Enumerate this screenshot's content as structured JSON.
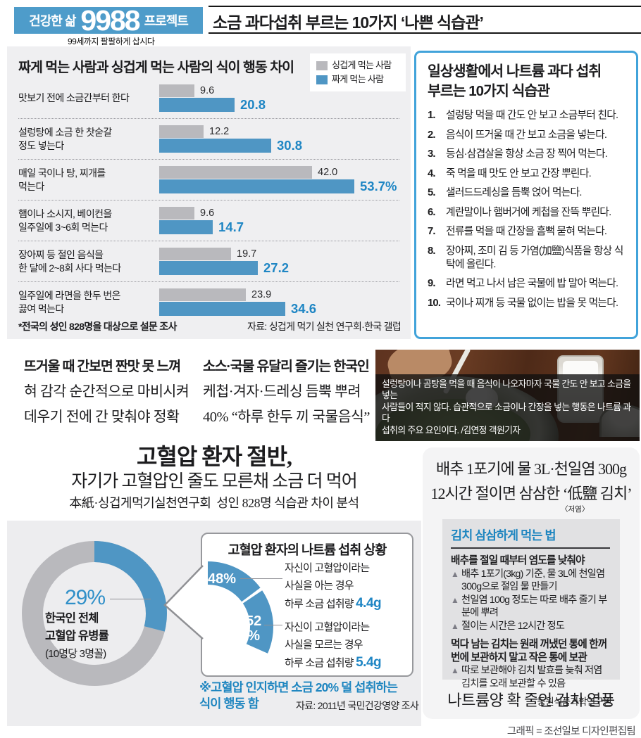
{
  "colors": {
    "badge_blue": "#4e9cca",
    "bar_blue": "#4f96c4",
    "bar_gray": "#b9b9bd",
    "value_blue": "#1f86c4",
    "box_border_blue": "#41a3da",
    "panel_gray": "#efeff1",
    "donut_gray": "#b9b9bd"
  },
  "header": {
    "badge_line1": "건강한 삶",
    "badge_number": "9988",
    "badge_line2": "프로젝트",
    "badge_sub": "99세까지 팔팔하게 삽시다",
    "title": "소금 과다섭취 부르는 10가지 ‘나쁜 식습관’"
  },
  "chart": {
    "title": "짜게 먹는 사람과 싱겁게 먹는 사람의 식이 행동 차이",
    "footnote": "*전국의 성인 828명을 대상으로 설문 조사",
    "source": "자료: 싱겁게 먹기 실천 연구회·한국 갤럽"
  },
  "chart_data": [
    {
      "type": "bar",
      "orientation": "horizontal",
      "title": "짜게 먹는 사람과 싱겁게 먹는 사람의 식이 행동 차이",
      "categories": [
        "맛보기 전에 소금간부터 한다",
        "설렁탕에 소금 한 찻숟갈\n정도 넣는다",
        "매일 국이나 탕, 찌개를\n먹는다",
        "햄이나 소시지, 베이컨을\n일주일에 3~6회 먹는다",
        "장아찌 등 절인 음식을\n한 달에 2~8회 사다 먹는다",
        "일주일에 라면을 한두 번은\n끓여 먹는다"
      ],
      "series": [
        {
          "name": "싱겁게 먹는 사람",
          "color": "#b9b9bd",
          "values": [
            9.6,
            12.2,
            42.0,
            9.6,
            19.7,
            23.9
          ],
          "labels": [
            "9.6",
            "12.2",
            "42.0",
            "9.6",
            "19.7",
            "23.9"
          ]
        },
        {
          "name": "짜게 먹는 사람",
          "color": "#4f96c4",
          "values": [
            20.8,
            30.8,
            53.7,
            14.7,
            27.2,
            34.6
          ],
          "labels": [
            "20.8",
            "30.8",
            "53.7%",
            "14.7",
            "27.2",
            "34.6"
          ]
        }
      ],
      "xlim": [
        0,
        55
      ],
      "unit": "%",
      "legend_position": "top-right",
      "grid": false
    },
    {
      "type": "pie",
      "subtype": "donut",
      "title": "한국인 전체 고혈압 유병률",
      "slices": [
        {
          "label": "고혈압 유병률",
          "value": 29,
          "color": "#4f96c4"
        },
        {
          "label": "기타",
          "value": 71,
          "color": "#b9b9bd"
        }
      ],
      "center_label": "29%",
      "note": "(10명당 3명꼴)"
    },
    {
      "type": "pie",
      "subtype": "quarter-arc",
      "title": "고혈압 환자의 나트륨 섭취 상황",
      "slices": [
        {
          "label": "자신이 고혈압이라는 사실을 아는 경우 하루 소금 섭취량 4.4g",
          "value": 48,
          "color": "#4f96c4"
        },
        {
          "label": "자신이 고혈압이라는 사실을 모르는 경우 하루 소금 섭취량 5.4g",
          "value": 52,
          "color": "#4f96c4"
        }
      ]
    }
  ],
  "habits_box": {
    "title_line1": "일상생활에서 나트륨 과다 섭취",
    "title_line2": "부르는 10가지 식습관",
    "items": [
      "설렁탕 먹을 때 간도 안 보고 소금부터 친다.",
      "음식이 뜨거울 때 간 보고 소금을 넣는다.",
      "등심·삼겹살을 항상 소금 장 찍어 먹는다.",
      "죽 먹을 때 맛도 안 보고 간장 뿌린다.",
      "샐러드드레싱을 듬뿍 얹어 먹는다.",
      "계란말이나 햄버거에 케첩을 잔뜩 뿌린다.",
      "전류를 먹을 때 간장을 흠뻑 묻혀 먹는다.",
      "장아찌, 조미 김 등 가염(加鹽)식품을 항상 식탁에 올린다.",
      "라면 먹고 나서 남은 국물에 밥 말아 먹는다.",
      "국이나 찌개 등 국물 없이는 밥을 못 먹는다."
    ]
  },
  "middle": {
    "col1_lines": [
      "뜨거울 때 간보면 짠맛 못 느껴",
      "혀 감각 순간적으로 마비시켜",
      "데우기 전에 간 맞춰야 정확"
    ],
    "col2_lines": [
      "소스·국물 유달리 즐기는 한국인",
      "케첩·겨자·드레싱 듬뿍 뿌려",
      "40% “하루 한두 끼 국물음식”"
    ],
    "photo_caption": "설렁탕이나 곰탕을 먹을 때 음식이 나오자마자 국물 간도 안 보고 소금을 넣는\n사람들이 적지 않다. 습관적으로 소금이나 간장을 넣는 행동은 나트륨 과다\n섭취의 주요 요인이다. /김연정 객원기자"
  },
  "hypertension": {
    "headline1": "고혈압 환자 절반,",
    "headline2": "자기가 고혈압인 줄도 모른채 소금 더 먹어",
    "subhead": "本紙·싱겁게먹기실천연구회  성인 828명 식습관 차이 분석",
    "donut": {
      "pct": 29,
      "pct_label": "29%",
      "label": "한국인 전체\n고혈압 유병률",
      "label_sub": "(10명당 3명꼴)"
    },
    "callout": {
      "title": "고혈압 환자의 나트륨 섭취 상황",
      "seg1_label": "48%",
      "seg2_label": "52\n%",
      "seg1_pct": 48,
      "seg2_pct": 52,
      "know_text": "자신이 고혈압이라는\n사실을 아는 경우\n하루 소금 섭취량 ",
      "know_amount": "4.4g",
      "unknow_text": "자신이 고혈압이라는\n사실을 모르는 경우\n하루 소금 섭취량 ",
      "unknow_amount": "5.4g"
    },
    "note": "※고혈압 인지하면 소금 20% 덜 섭취하는\n   식이 행동 함",
    "source": "자료: 2011년 국민건강영양 조사"
  },
  "kimchi": {
    "headline1": "배추 1포기에 물 3L·천일염 300g",
    "headline2": "12시간 절이면 삼삼한 ‘低鹽 김치’",
    "headline2_sub": "〈저염〉",
    "box_title": "김치 삼삼하게 먹는 법",
    "sections": [
      {
        "heading": "배추를 절일 때부터 염도를 낮춰야",
        "bullets": [
          "배추 1포기(3kg) 기준, 물 3L에 천일염 300g으로 절임 물 만들기",
          "천일염 100g 정도는 따로 배추 줄기 부분에 뿌려",
          "절이는 시간은 12시간 정도"
        ]
      },
      {
        "heading": "먹다 남는 김치는 원래 꺼냈던 통에 한꺼번에 보관하지 말고 작은 통에 보관",
        "bullets": [
          "따로 보관해야 김치 발효를 늦춰 저염 김치를 오래 보관할 수 있음"
        ]
      }
    ],
    "box_source": "동원식품과학연구원",
    "bottom_headline": "나트륨양 확 줄인 김치 열풍"
  },
  "footer": {
    "credit": "그래픽 = 조선일보 디자인편집팀"
  }
}
